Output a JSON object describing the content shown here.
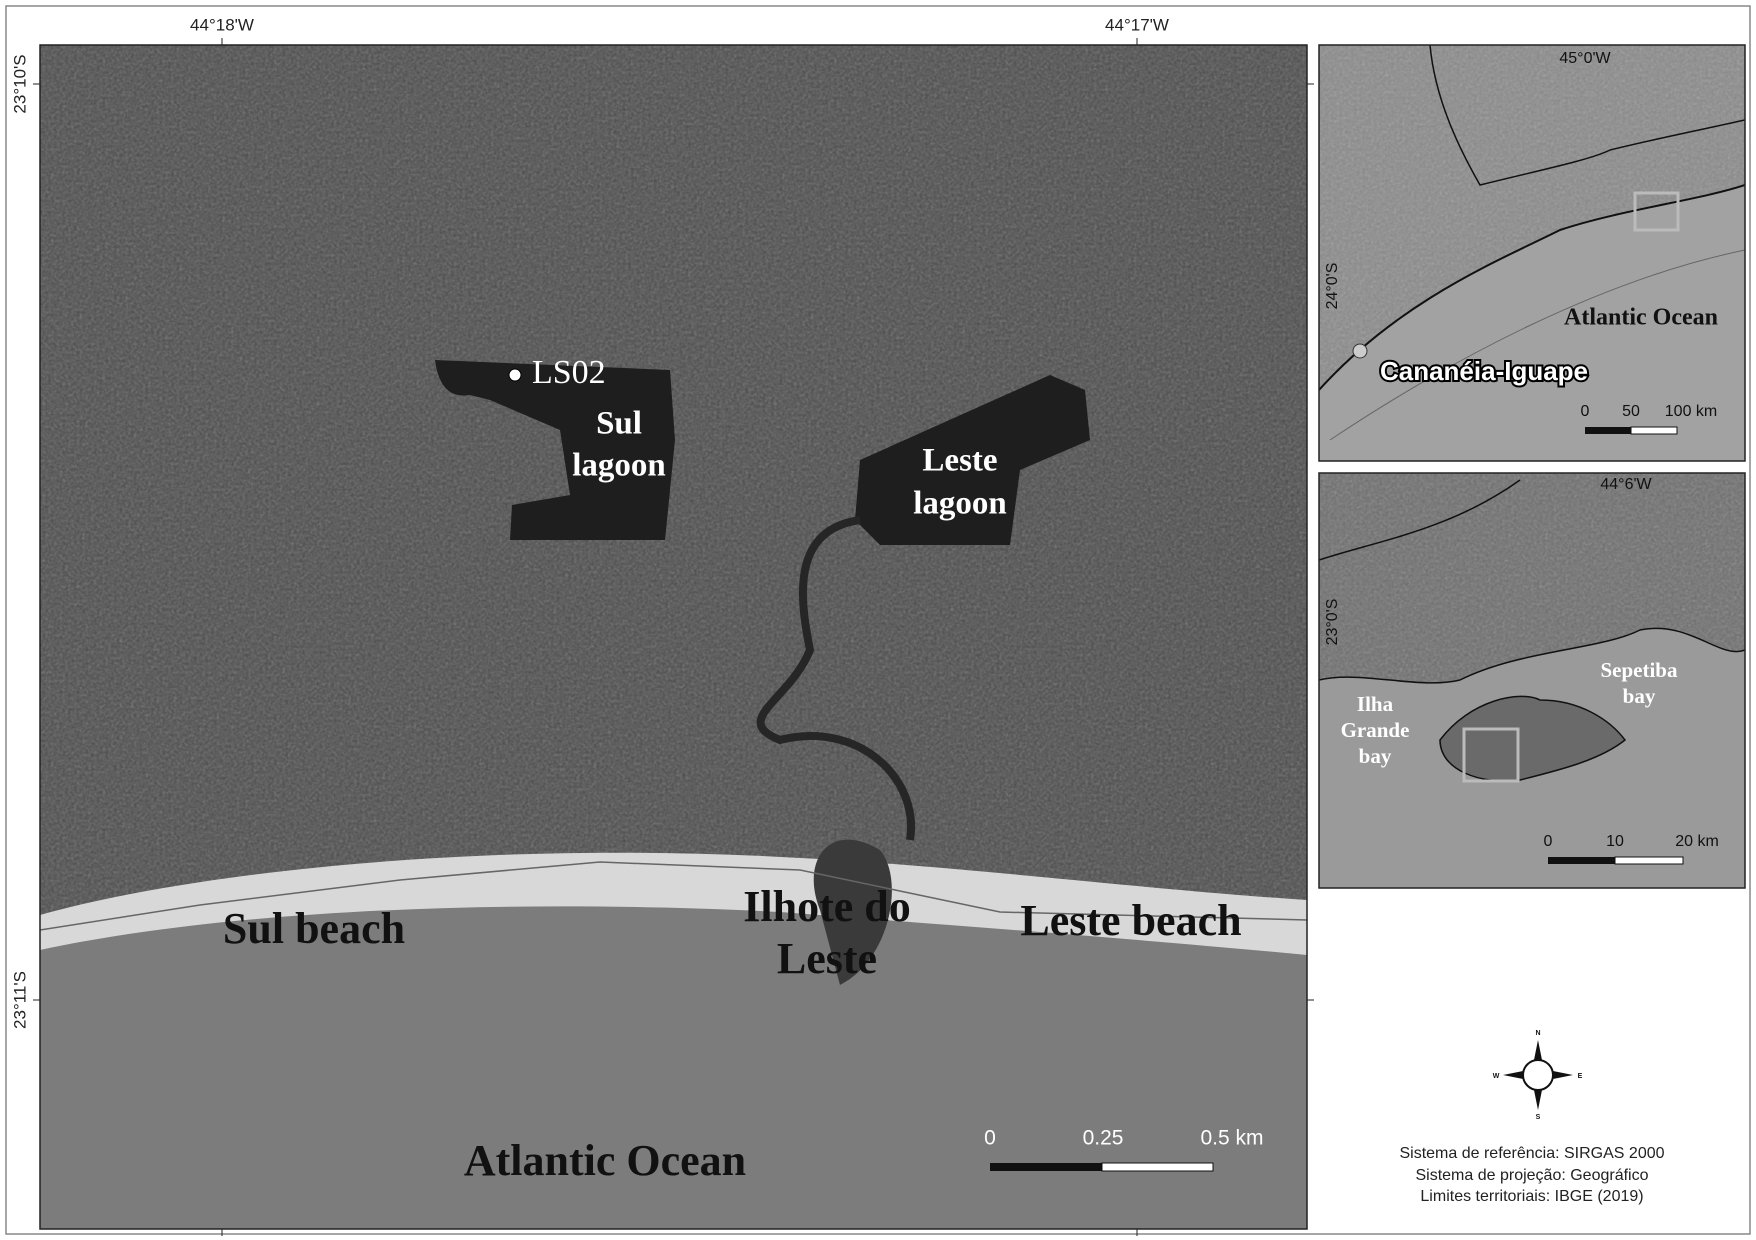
{
  "main_map": {
    "longitude_labels": [
      "44°18'W",
      "44°17'W"
    ],
    "latitude_labels": [
      "23°10'S",
      "23°11'S"
    ],
    "sample_point": "LS02",
    "sul_lagoon": [
      "Sul",
      "lagoon"
    ],
    "leste_lagoon": [
      "Leste",
      "lagoon"
    ],
    "sul_beach": "Sul beach",
    "ilhote": [
      "Ilhote do",
      "Leste"
    ],
    "leste_beach": "Leste beach",
    "ocean": "Atlantic Ocean",
    "scale_bar": [
      "0",
      "0.25",
      "0.5 km"
    ]
  },
  "inset_regional": {
    "longitude_label": "45°0'W",
    "latitude_label": "24°0'S",
    "ocean": "Atlantic Ocean",
    "site": "Cananéia-Iguape",
    "scale_bar": [
      "0",
      "50",
      "100 km"
    ]
  },
  "inset_local": {
    "longitude_label": "44°6'W",
    "latitude_label": "23°0'S",
    "ilha_grande_bay": [
      "Ilha",
      "Grande",
      "bay"
    ],
    "sepetiba_bay": [
      "Sepetiba",
      "bay"
    ],
    "scale_bar": [
      "0",
      "10",
      "20 km"
    ]
  },
  "compass": [
    "N",
    "S",
    "E",
    "W"
  ],
  "credits": [
    "Sistema de referência: SIRGAS 2000",
    "Sistema de projeção: Geográfico",
    "Limites territoriais: IBGE (2019)"
  ]
}
